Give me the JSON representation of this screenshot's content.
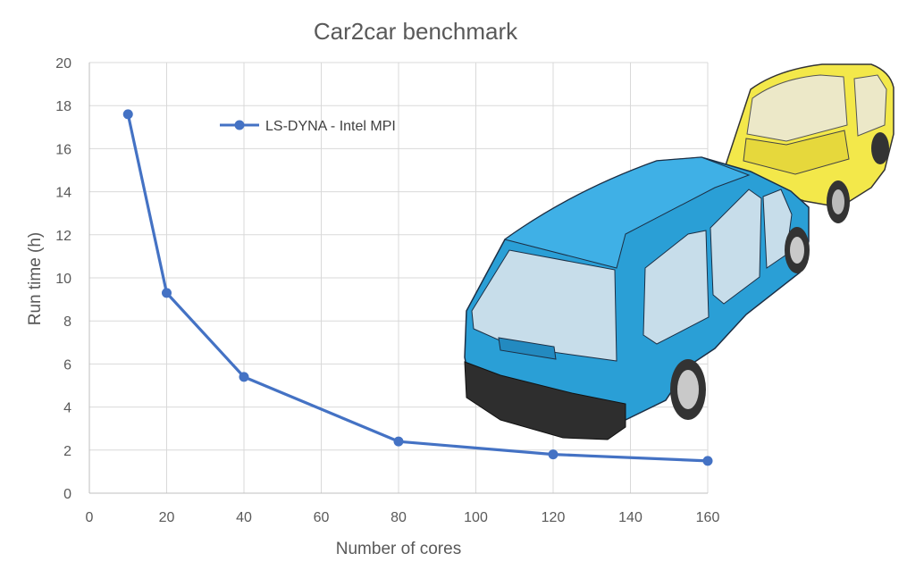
{
  "chart_data": {
    "type": "line",
    "title": "Car2car benchmark",
    "xlabel": "Number of cores",
    "ylabel": "Run time (h)",
    "xlim": [
      0,
      160
    ],
    "ylim": [
      0,
      20
    ],
    "x_ticks": [
      "0",
      "20",
      "40",
      "60",
      "80",
      "100",
      "120",
      "140",
      "160"
    ],
    "y_ticks": [
      "0",
      "2",
      "4",
      "6",
      "8",
      "10",
      "12",
      "14",
      "16",
      "18",
      "20"
    ],
    "grid": true,
    "legend_position": "top-left",
    "series": [
      {
        "name": "LS-DYNA - Intel MPI",
        "color": "#4472c4",
        "x": [
          10,
          20,
          40,
          80,
          120,
          160
        ],
        "y": [
          17.6,
          9.3,
          5.4,
          2.4,
          1.8,
          1.5
        ]
      }
    ]
  },
  "illustration": {
    "name": "crash-simulation-vehicles",
    "blue_vehicle_color": "#2a9fd6",
    "yellow_vehicle_color": "#f3e84a"
  }
}
